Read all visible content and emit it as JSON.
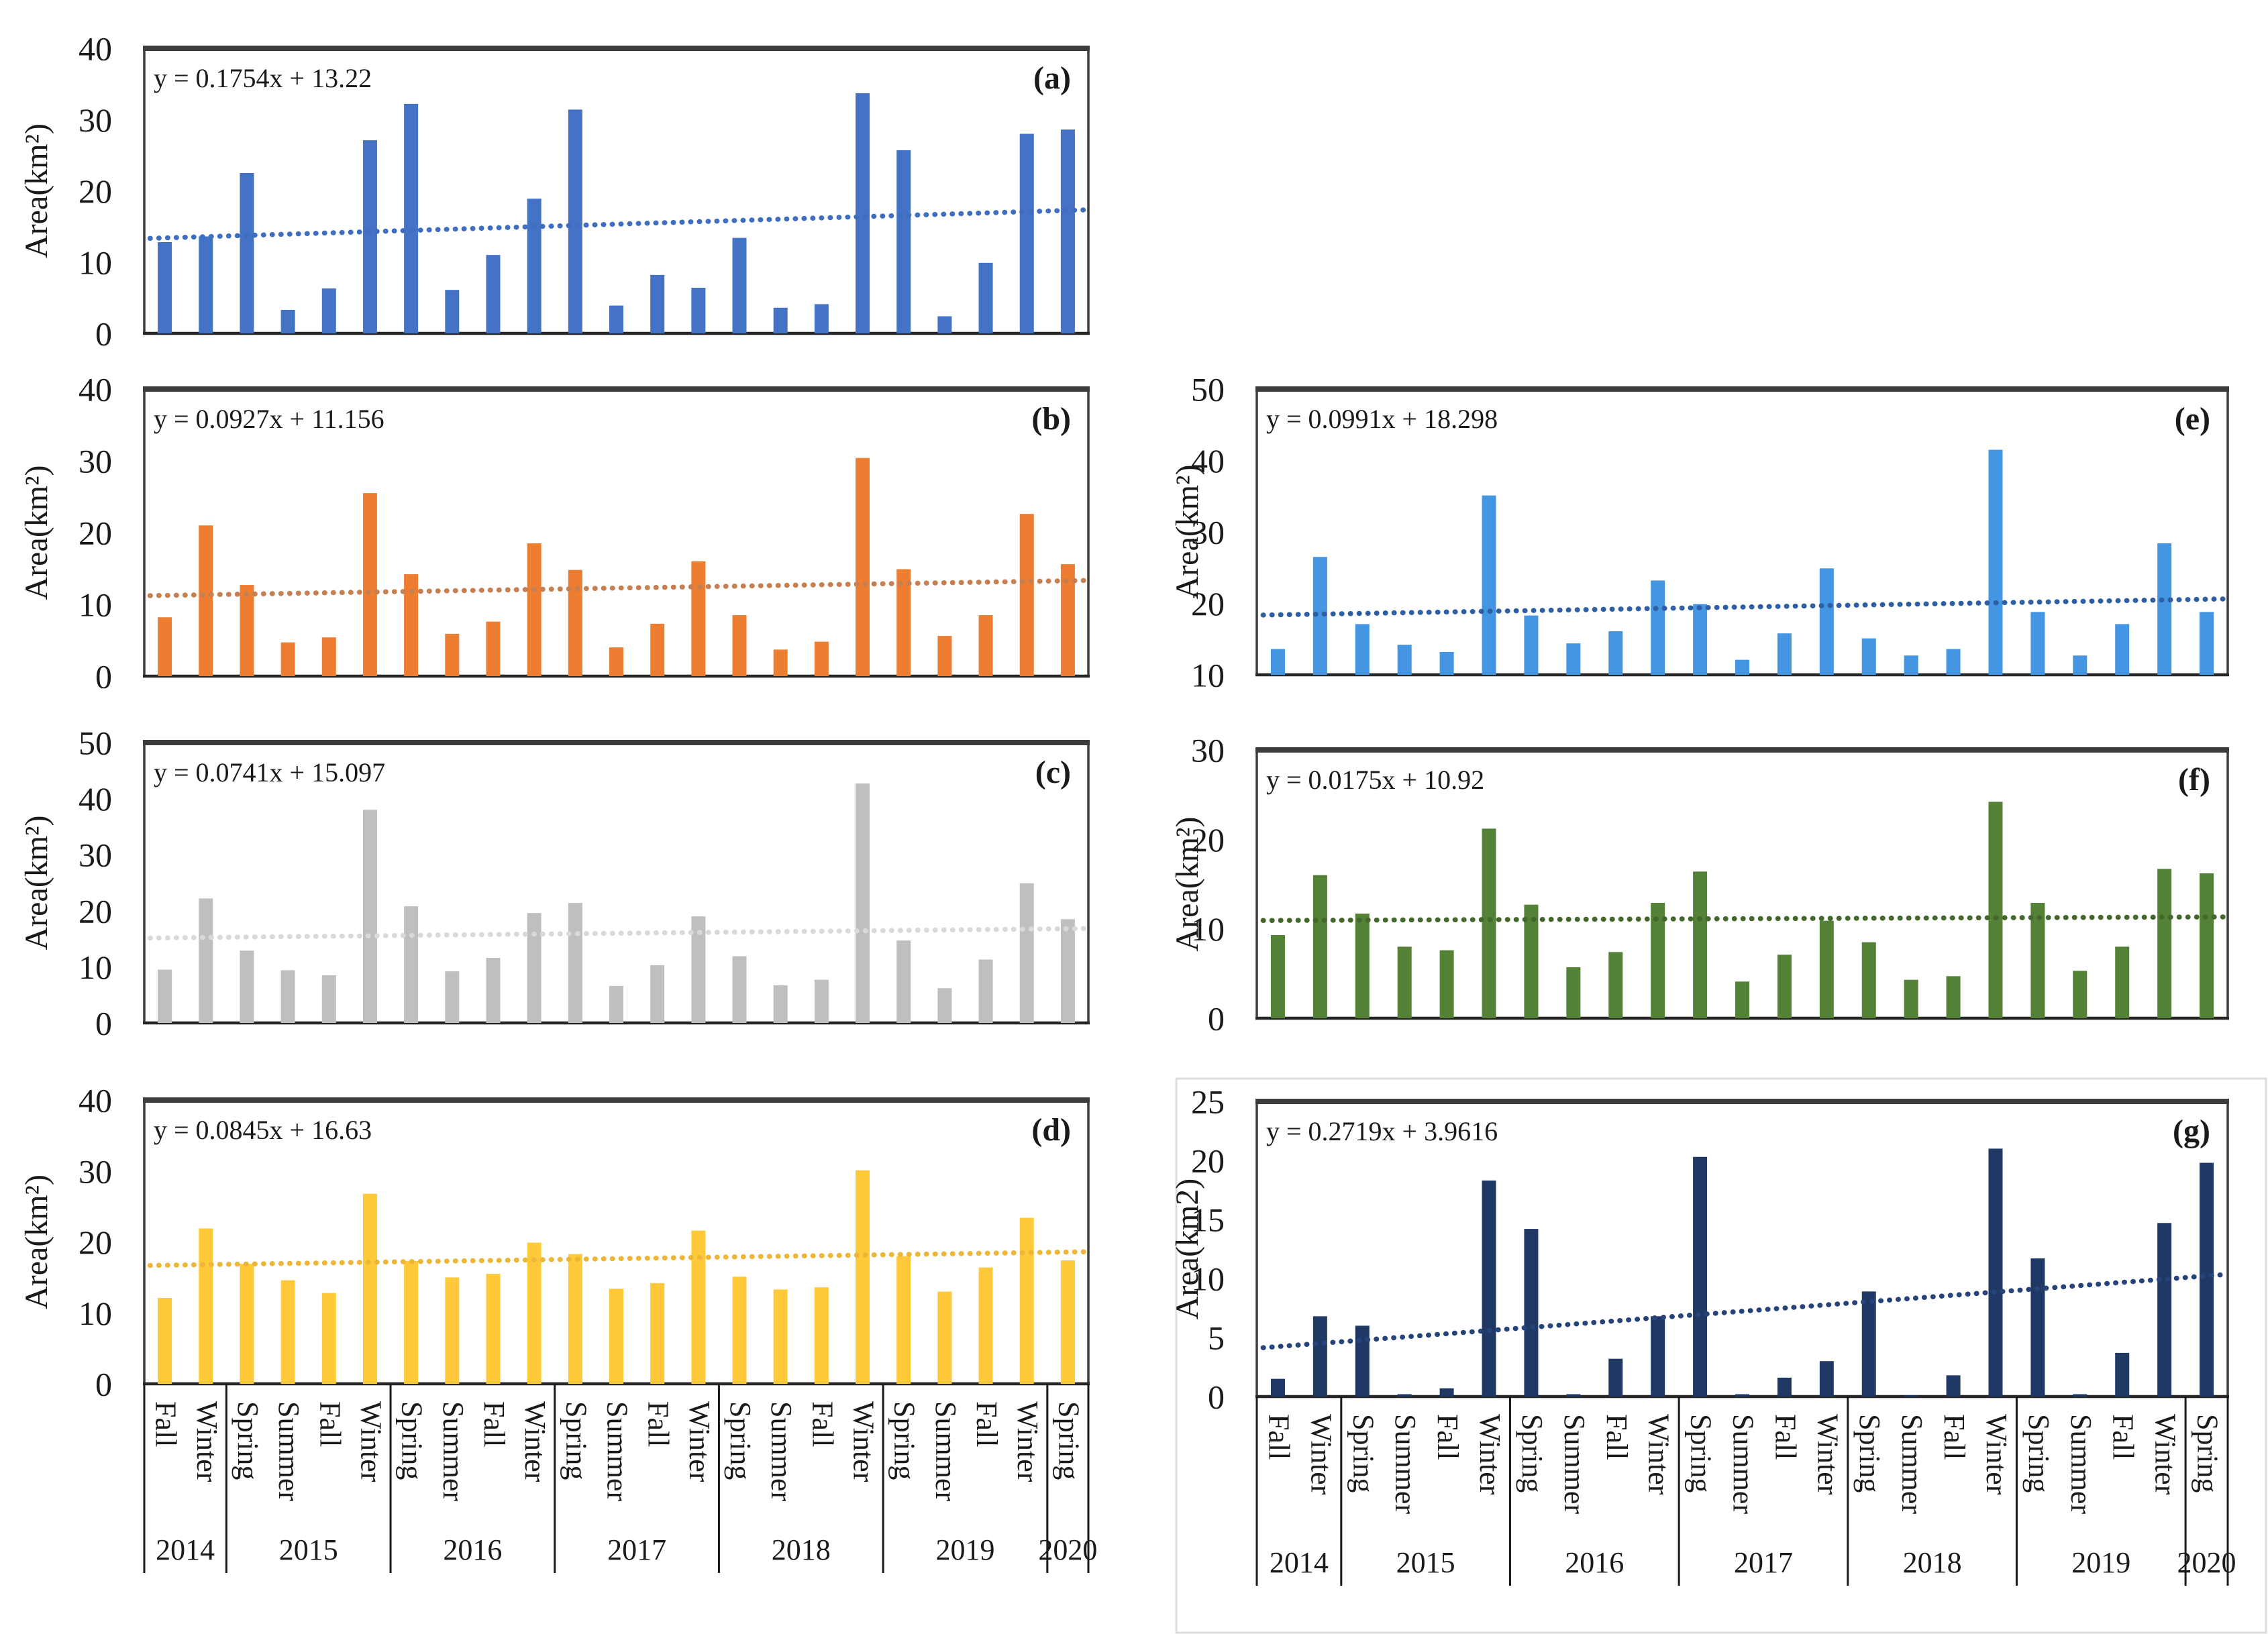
{
  "figure": {
    "description": "Seven seasonal bar charts (a-g) of Area(km2) with linear trend lines, 2014-2020",
    "x_axis": {
      "categories": [
        "Fall",
        "Winter",
        "Spring",
        "Summer",
        "Fall",
        "Winter",
        "Spring",
        "Summer",
        "Fall",
        "Winter",
        "Spring",
        "Summer",
        "Fall",
        "Winter",
        "Spring",
        "Summer",
        "Fall",
        "Winter",
        "Spring",
        "Summer",
        "Fall",
        "Winter",
        "Spring"
      ],
      "year_groups": [
        {
          "label": "2014",
          "span": 2
        },
        {
          "label": "2015",
          "span": 4
        },
        {
          "label": "2016",
          "span": 4
        },
        {
          "label": "2017",
          "span": 4
        },
        {
          "label": "2018",
          "span": 4
        },
        {
          "label": "2019",
          "span": 4
        },
        {
          "label": "2020",
          "span": 1
        }
      ]
    },
    "axis_color": "#3c3c3c",
    "text_color": "#1a1a1a",
    "highlight_frame_color": "#dcdcdc"
  },
  "chart_data": [
    {
      "type": "bar",
      "id": "a",
      "panel_label": "(a)",
      "equation": "y = 0.1754x + 13.22",
      "trend": {
        "slope": 0.1754,
        "intercept": 13.22
      },
      "ylabel": "Area(km²)",
      "ylim": [
        0,
        40
      ],
      "yticks": [
        0,
        10,
        20,
        30,
        40
      ],
      "bar_color": "#4472C4",
      "trend_color": "#3f6dbf",
      "grid": false,
      "legend": "none",
      "values": [
        12.8,
        13.6,
        22.5,
        3.3,
        6.3,
        27.1,
        32.2,
        6.1,
        11.0,
        18.9,
        31.4,
        3.9,
        8.2,
        6.4,
        13.4,
        3.6,
        4.1,
        33.7,
        25.7,
        2.4,
        9.9,
        28.0,
        28.6
      ]
    },
    {
      "type": "bar",
      "id": "b",
      "panel_label": "(b)",
      "equation": "y = 0.0927x + 11.156",
      "trend": {
        "slope": 0.0927,
        "intercept": 11.156
      },
      "ylabel": "Area(km²)",
      "ylim": [
        0,
        40
      ],
      "yticks": [
        0,
        10,
        20,
        30,
        40
      ],
      "bar_color": "#ED7D31",
      "trend_color": "#c57f50",
      "grid": false,
      "legend": "none",
      "values": [
        8.2,
        21.0,
        12.7,
        4.7,
        5.4,
        25.5,
        14.2,
        5.9,
        7.6,
        18.5,
        14.8,
        4.0,
        7.3,
        16.0,
        8.5,
        3.7,
        4.8,
        30.4,
        14.9,
        5.6,
        8.5,
        22.6,
        15.6
      ]
    },
    {
      "type": "bar",
      "id": "c",
      "panel_label": "(c)",
      "equation": "y = 0.0741x + 15.097",
      "trend": {
        "slope": 0.0741,
        "intercept": 15.097
      },
      "ylabel": "Area(km²)",
      "ylim": [
        0,
        50
      ],
      "yticks": [
        0,
        10,
        20,
        30,
        40,
        50
      ],
      "bar_color": "#BFBFBF",
      "trend_color": "#d9d9d9",
      "grid": false,
      "legend": "none",
      "values": [
        9.5,
        22.2,
        12.9,
        9.4,
        8.5,
        38.0,
        20.8,
        9.2,
        11.6,
        19.6,
        21.4,
        6.6,
        10.3,
        19.0,
        11.9,
        6.7,
        7.7,
        42.7,
        14.7,
        6.2,
        11.3,
        24.9,
        18.5
      ]
    },
    {
      "type": "bar",
      "id": "d",
      "panel_label": "(d)",
      "equation": "y = 0.0845x + 16.63",
      "trend": {
        "slope": 0.0845,
        "intercept": 16.63
      },
      "ylabel": "Area(km²)",
      "ylim": [
        0,
        40
      ],
      "yticks": [
        0,
        10,
        20,
        30,
        40
      ],
      "bar_color": "#FFC93A",
      "trend_color": "#edb637",
      "grid": false,
      "legend": "none",
      "values": [
        12.1,
        21.9,
        16.9,
        14.6,
        12.8,
        26.8,
        17.3,
        15.0,
        15.5,
        19.9,
        18.3,
        13.4,
        14.2,
        21.6,
        15.1,
        13.3,
        13.6,
        30.1,
        18.0,
        13.0,
        16.4,
        23.4,
        17.4
      ]
    },
    {
      "type": "bar",
      "id": "e",
      "panel_label": "(e)",
      "equation": "y = 0.0991x + 18.298",
      "trend": {
        "slope": 0.0991,
        "intercept": 18.298
      },
      "ylabel": "Area(km²)",
      "ylim": [
        10,
        50
      ],
      "yticks": [
        10,
        20,
        30,
        40,
        50
      ],
      "bar_color": "#4496E3",
      "trend_color": "#2e5fa3",
      "grid": false,
      "legend": "none",
      "values": [
        13.6,
        26.5,
        17.1,
        14.2,
        13.2,
        35.1,
        18.3,
        14.4,
        16.1,
        23.2,
        19.9,
        12.1,
        15.8,
        24.9,
        15.1,
        12.7,
        13.6,
        41.5,
        18.8,
        12.7,
        17.1,
        28.4,
        18.8
      ]
    },
    {
      "type": "bar",
      "id": "f",
      "panel_label": "(f)",
      "equation": "y = 0.0175x + 10.92",
      "trend": {
        "slope": 0.0175,
        "intercept": 10.92
      },
      "ylabel": "Area(km²)",
      "ylim": [
        0,
        30
      ],
      "yticks": [
        0,
        10,
        20,
        30
      ],
      "bar_color": "#538135",
      "trend_color": "#44682c",
      "grid": false,
      "legend": "none",
      "values": [
        9.3,
        16.0,
        11.7,
        8.0,
        7.6,
        21.2,
        12.7,
        5.7,
        7.4,
        12.9,
        16.4,
        4.1,
        7.1,
        10.9,
        8.5,
        4.3,
        4.7,
        24.2,
        12.9,
        5.3,
        8.0,
        16.7,
        16.2
      ]
    },
    {
      "type": "bar",
      "id": "g",
      "panel_label": "(g)",
      "equation": "y = 0.2719x + 3.9616",
      "trend": {
        "slope": 0.2719,
        "intercept": 3.9616
      },
      "ylabel": "Area(km2)",
      "ylim": [
        0,
        25
      ],
      "yticks": [
        0,
        5,
        10,
        15,
        20,
        25
      ],
      "bar_color": "#1F3864",
      "trend_color": "#26437a",
      "grid": false,
      "legend": "none",
      "values": [
        1.5,
        6.8,
        6.0,
        0.2,
        0.7,
        18.3,
        14.2,
        0.2,
        3.2,
        6.8,
        20.3,
        0.2,
        1.6,
        3.0,
        8.9,
        0.1,
        1.8,
        21.0,
        11.7,
        0.2,
        3.7,
        14.7,
        19.8
      ]
    }
  ]
}
